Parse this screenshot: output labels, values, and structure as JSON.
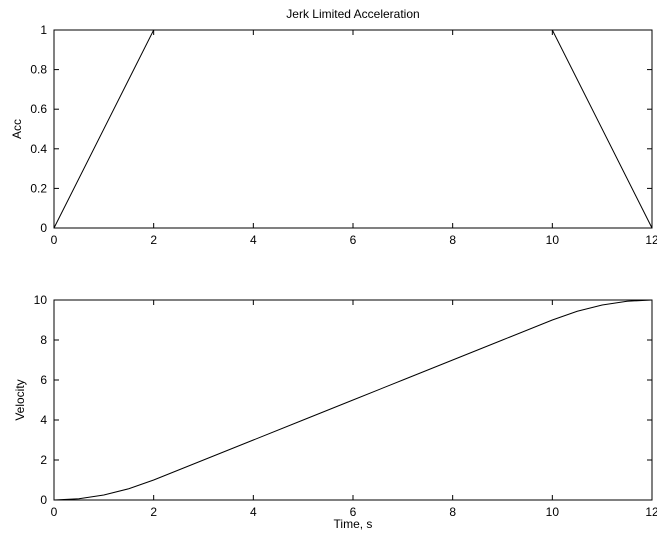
{
  "chart_data": [
    {
      "type": "line",
      "title": "Jerk Limited Acceleration",
      "xlabel": "",
      "ylabel": "Acc",
      "xlim": [
        0,
        12
      ],
      "ylim": [
        0,
        1
      ],
      "xticks": [
        "0",
        "2",
        "4",
        "6",
        "8",
        "10",
        "12"
      ],
      "yticks": [
        "0",
        "0.2",
        "0.4",
        "0.6",
        "0.8",
        "1"
      ],
      "grid": false,
      "series": [
        {
          "x": [
            0,
            2,
            10,
            12
          ],
          "y": [
            0,
            1,
            1,
            0
          ]
        }
      ],
      "line_color": "#000000"
    },
    {
      "type": "line",
      "title": "",
      "xlabel": "Time, s",
      "ylabel": "Velocity",
      "xlim": [
        0,
        12
      ],
      "ylim": [
        0,
        10
      ],
      "xticks": [
        "0",
        "2",
        "4",
        "6",
        "8",
        "10",
        "12"
      ],
      "yticks": [
        "0",
        "2",
        "4",
        "6",
        "8",
        "10"
      ],
      "grid": false,
      "series": [
        {
          "x": [
            0,
            0.5,
            1,
            1.5,
            2,
            3,
            4,
            5,
            6,
            7,
            8,
            9,
            10,
            10.5,
            11,
            11.5,
            12
          ],
          "y": [
            0,
            0.0625,
            0.25,
            0.5625,
            1,
            2,
            3,
            4,
            5,
            6,
            7,
            8,
            9,
            9.4375,
            9.75,
            9.9375,
            10
          ]
        }
      ],
      "line_color": "#000000"
    }
  ]
}
